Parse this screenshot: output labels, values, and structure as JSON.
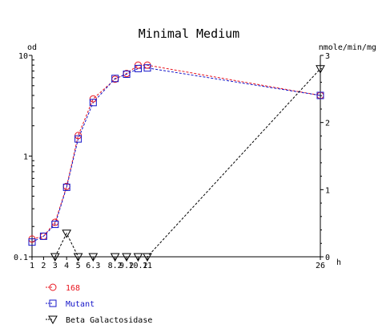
{
  "chart_data": {
    "type": "line",
    "title": "Minimal Medium",
    "xlabel": "h",
    "ylabel": "od",
    "y2label": "nmole/min/mg",
    "xlim": [
      1,
      26
    ],
    "ylim": [
      0.1,
      10
    ],
    "yscale": "log",
    "y2lim": [
      0,
      3
    ],
    "x_ticks": [
      {
        "value": 1,
        "label": "1"
      },
      {
        "value": 2,
        "label": "2"
      },
      {
        "value": 3,
        "label": "3"
      },
      {
        "value": 4,
        "label": "4"
      },
      {
        "value": 5,
        "label": "5"
      },
      {
        "value": 6.3,
        "label": "6.3"
      },
      {
        "value": 8.2,
        "label": "8.2"
      },
      {
        "value": 9.2,
        "label": "9.2"
      },
      {
        "value": 10.2,
        "label": "10.2"
      },
      {
        "value": 11,
        "label": "11"
      },
      {
        "value": 26,
        "label": "26"
      }
    ],
    "y_ticks": [
      {
        "value": 0.1,
        "label": "0.1"
      },
      {
        "value": 1,
        "label": "1"
      },
      {
        "value": 10,
        "label": "10"
      }
    ],
    "y2_ticks": [
      {
        "value": 0,
        "label": "0"
      },
      {
        "value": 1,
        "label": "1"
      },
      {
        "value": 2,
        "label": "2"
      },
      {
        "value": 3,
        "label": "3"
      }
    ],
    "series": [
      {
        "name": "168",
        "axis": "left",
        "marker": "circle",
        "color": "#e8141e",
        "x": [
          1,
          2,
          3,
          4,
          5,
          6.3,
          8.2,
          9.2,
          10.2,
          11,
          26
        ],
        "y": [
          0.15,
          0.16,
          0.22,
          0.5,
          1.6,
          3.7,
          5.8,
          6.6,
          8.0,
          8.0,
          4.0
        ]
      },
      {
        "name": "Mutant",
        "axis": "left",
        "marker": "square",
        "color": "#1414c8",
        "x": [
          1,
          2,
          3,
          4,
          5,
          6.3,
          8.2,
          9.2,
          10.2,
          11,
          26
        ],
        "y": [
          0.14,
          0.16,
          0.21,
          0.49,
          1.48,
          3.4,
          5.9,
          6.5,
          7.4,
          7.5,
          4.0
        ]
      },
      {
        "name": "Beta Galactosidase",
        "axis": "right",
        "marker": "triangle-down",
        "color": "#000000",
        "x": [
          3,
          4,
          5,
          6.3,
          8.2,
          9.2,
          10.2,
          11,
          26
        ],
        "y": [
          0,
          0.35,
          0,
          0,
          0,
          0,
          0,
          0,
          2.8
        ]
      }
    ],
    "legend": "bottom-left",
    "grid": false
  }
}
